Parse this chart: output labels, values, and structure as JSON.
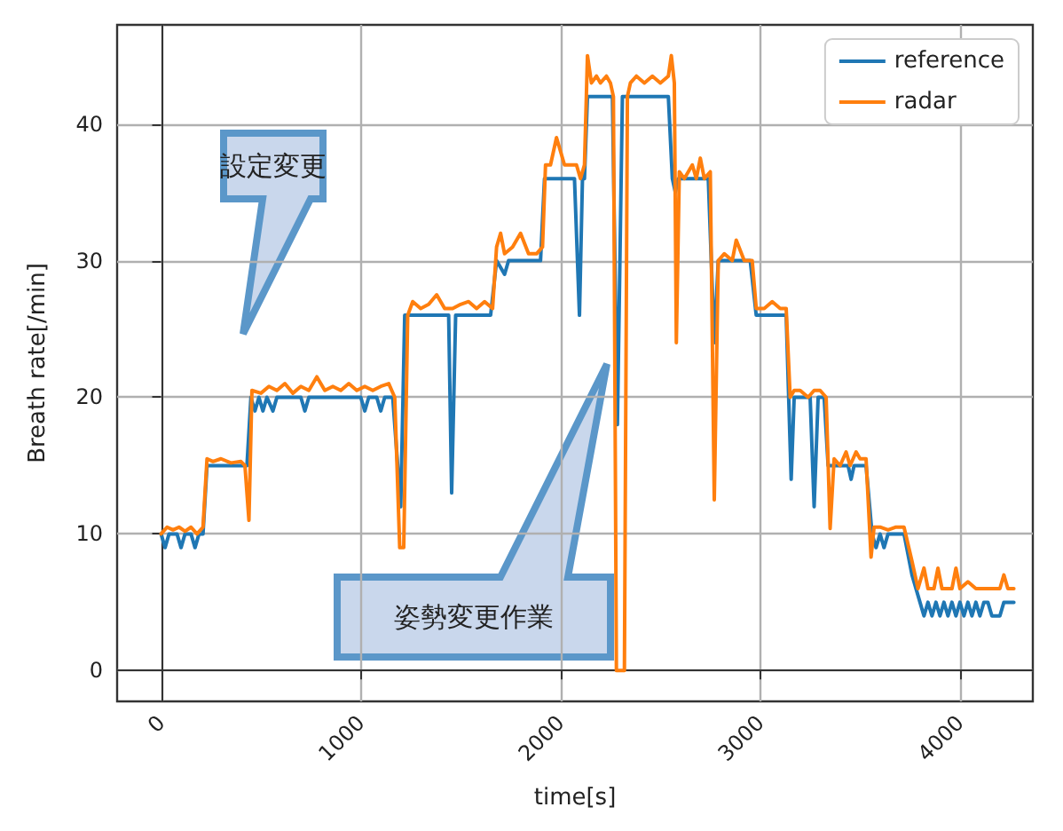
{
  "chart_data": {
    "type": "line",
    "xlabel": "time[s]",
    "ylabel": "Breath rate[/min]",
    "xlim": [
      -220,
      4365
    ],
    "ylim": [
      -2.25,
      47.25
    ],
    "xticks": [
      0,
      1000,
      2000,
      3000,
      4000
    ],
    "yticks": [
      0,
      10,
      20,
      30,
      40
    ],
    "grid": true,
    "legend": "top right",
    "marker": "none",
    "line_style": "solid",
    "annotations": [
      "設定変更",
      "姿勢変更作業"
    ],
    "series": [
      {
        "name": "reference",
        "color": "#1f77b4",
        "x": [
          0,
          20,
          40,
          60,
          80,
          100,
          120,
          150,
          170,
          190,
          210,
          230,
          260,
          300,
          350,
          400,
          430,
          450,
          470,
          490,
          510,
          530,
          560,
          580,
          700,
          720,
          740,
          900,
          1000,
          1020,
          1040,
          1080,
          1100,
          1120,
          1160,
          1200,
          1220,
          1440,
          1455,
          1475,
          1650,
          1680,
          1720,
          1740,
          1900,
          1920,
          2070,
          2095,
          2110,
          2120,
          2135,
          2260,
          2285,
          2310,
          2540,
          2560,
          2575,
          2590,
          2740,
          2770,
          2790,
          2950,
          2980,
          3130,
          3155,
          3170,
          3250,
          3270,
          3290,
          3320,
          3340,
          3440,
          3455,
          3470,
          3530,
          3560,
          3580,
          3600,
          3620,
          3640,
          3720,
          3760,
          3800,
          3820,
          3840,
          3860,
          3880,
          3900,
          3920,
          3940,
          3960,
          3980,
          4000,
          4020,
          4040,
          4060,
          4080,
          4100,
          4120,
          4140,
          4160,
          4180,
          4200,
          4220,
          4240,
          4270
        ],
        "values": [
          10,
          9,
          10,
          10,
          10,
          9,
          10,
          10,
          9,
          10,
          10,
          15,
          15,
          15,
          15,
          15,
          15,
          20,
          19,
          20,
          19,
          20,
          19,
          20,
          20,
          19,
          20,
          20,
          20,
          19,
          20,
          20,
          19,
          20,
          20,
          12,
          26,
          26,
          13,
          26,
          26,
          30,
          29,
          30,
          30,
          36,
          36,
          26,
          36,
          36,
          42,
          42,
          18,
          42,
          42,
          36,
          35,
          36,
          36,
          24,
          30,
          30,
          26,
          26,
          14,
          20,
          20,
          12,
          20,
          20,
          15,
          15,
          14,
          15,
          15,
          10,
          9,
          10,
          9,
          10,
          10,
          7,
          5,
          4,
          5,
          4,
          5,
          4,
          5,
          4,
          5,
          4,
          5,
          4,
          5,
          4,
          5,
          4,
          5,
          5,
          4,
          4,
          4,
          5,
          5,
          5
        ]
      },
      {
        "name": "radar",
        "color": "#ff7f0e",
        "x": [
          0,
          30,
          60,
          90,
          120,
          150,
          180,
          210,
          230,
          260,
          300,
          350,
          400,
          420,
          440,
          455,
          500,
          540,
          580,
          620,
          660,
          700,
          740,
          780,
          820,
          860,
          900,
          940,
          980,
          1020,
          1060,
          1100,
          1140,
          1170,
          1195,
          1215,
          1235,
          1260,
          1300,
          1340,
          1380,
          1420,
          1460,
          1500,
          1540,
          1580,
          1620,
          1660,
          1680,
          1700,
          1720,
          1760,
          1800,
          1840,
          1880,
          1910,
          1925,
          1950,
          1980,
          2020,
          2060,
          2080,
          2100,
          2120,
          2135,
          2155,
          2180,
          2200,
          2230,
          2250,
          2265,
          2280,
          2320,
          2335,
          2350,
          2380,
          2420,
          2460,
          2500,
          2540,
          2555,
          2570,
          2580,
          2595,
          2620,
          2660,
          2680,
          2700,
          2720,
          2750,
          2770,
          2790,
          2820,
          2860,
          2880,
          2920,
          2960,
          2980,
          3020,
          3060,
          3100,
          3130,
          3150,
          3170,
          3200,
          3240,
          3270,
          3300,
          3330,
          3350,
          3370,
          3400,
          3430,
          3450,
          3480,
          3500,
          3530,
          3555,
          3570,
          3600,
          3640,
          3680,
          3720,
          3760,
          3790,
          3820,
          3840,
          3870,
          3890,
          3910,
          3960,
          3980,
          4000,
          4040,
          4080,
          4120,
          4200,
          4220,
          4240,
          4270
        ],
        "values": [
          10,
          10.5,
          10.3,
          10.5,
          10.2,
          10.5,
          10,
          10.5,
          15.5,
          15.3,
          15.5,
          15.2,
          15.3,
          15,
          11,
          20.5,
          20.3,
          20.8,
          20.5,
          21,
          20.3,
          20.8,
          20.5,
          21.5,
          20.5,
          20.8,
          20.5,
          21,
          20.5,
          20.8,
          20.5,
          20.8,
          21,
          20,
          9,
          9,
          26,
          27,
          26.5,
          26.8,
          27.5,
          26.5,
          26.5,
          26.8,
          27,
          26.5,
          27,
          26.5,
          31,
          32,
          30.5,
          31,
          32,
          30.5,
          30.5,
          31,
          37,
          37,
          39,
          37,
          37,
          37,
          36,
          37,
          45,
          43,
          43.5,
          43,
          43.5,
          43,
          42,
          0,
          0,
          42,
          43,
          43.5,
          43,
          43.5,
          43,
          43.5,
          45,
          43,
          24,
          36.5,
          36,
          37,
          36,
          37.5,
          36,
          36.5,
          12.5,
          30,
          30.5,
          30,
          31.5,
          30,
          30,
          26.5,
          26.5,
          27,
          26.5,
          26.5,
          20,
          20.5,
          20.5,
          20,
          20.5,
          20.5,
          20,
          10.4,
          15.5,
          15,
          16,
          15,
          16,
          15.5,
          15.5,
          8.3,
          10.5,
          10.5,
          10.3,
          10.5,
          10.5,
          8,
          6,
          7.5,
          6,
          6,
          7.5,
          6,
          6,
          7.5,
          6,
          6.5,
          6,
          6,
          6,
          7,
          6,
          6
        ]
      }
    ]
  }
}
